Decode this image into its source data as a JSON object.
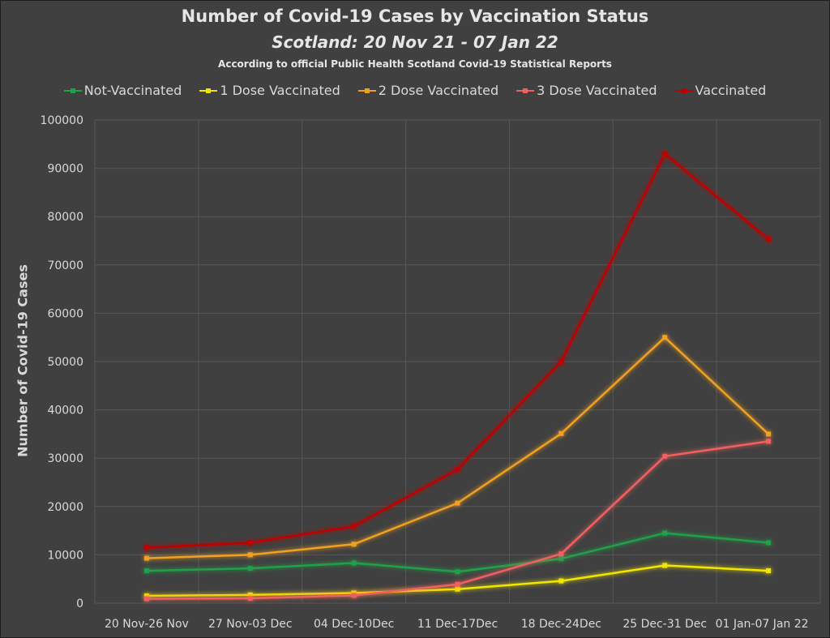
{
  "chart_data": {
    "type": "line",
    "title": "Number of Covid-19 Cases by Vaccination Status",
    "subtitle": "Scotland: 20 Nov 21 - 07 Jan 22",
    "subtitle2": "According to official Public Health Scotland Covid-19 Statistical Reports",
    "ylabel": "Number of Covid-19 Cases",
    "xlabel": "",
    "ylim": [
      0,
      100000
    ],
    "yticks": [
      "0",
      "10000",
      "20000",
      "30000",
      "40000",
      "50000",
      "60000",
      "70000",
      "80000",
      "90000",
      "100000"
    ],
    "categories": [
      "20 Nov-26 Nov",
      "27 Nov-03 Dec",
      "04 Dec-10Dec",
      "11 Dec-17Dec",
      "18 Dec-24Dec",
      "25 Dec-31 Dec",
      "01 Jan-07 Jan 22"
    ],
    "grid": true,
    "legend_position": "top",
    "series": [
      {
        "name": "Not-Vaccinated",
        "color": "#21a04a",
        "values": [
          6700,
          7200,
          8300,
          6500,
          9200,
          14500,
          12500
        ]
      },
      {
        "name": "1 Dose Vaccinated",
        "color": "#f2e600",
        "values": [
          1500,
          1700,
          2100,
          2900,
          4600,
          7800,
          6700
        ]
      },
      {
        "name": "2 Dose Vaccinated",
        "color": "#f0a020",
        "values": [
          9300,
          10000,
          12200,
          20700,
          35100,
          55000,
          35000
        ]
      },
      {
        "name": "3 Dose Vaccinated",
        "color": "#f06060",
        "values": [
          900,
          1000,
          1600,
          3900,
          10200,
          30400,
          33500
        ]
      },
      {
        "name": "Vaccinated",
        "color": "#c00000",
        "values": [
          11500,
          12500,
          15900,
          27700,
          50000,
          93000,
          75300
        ]
      }
    ]
  }
}
